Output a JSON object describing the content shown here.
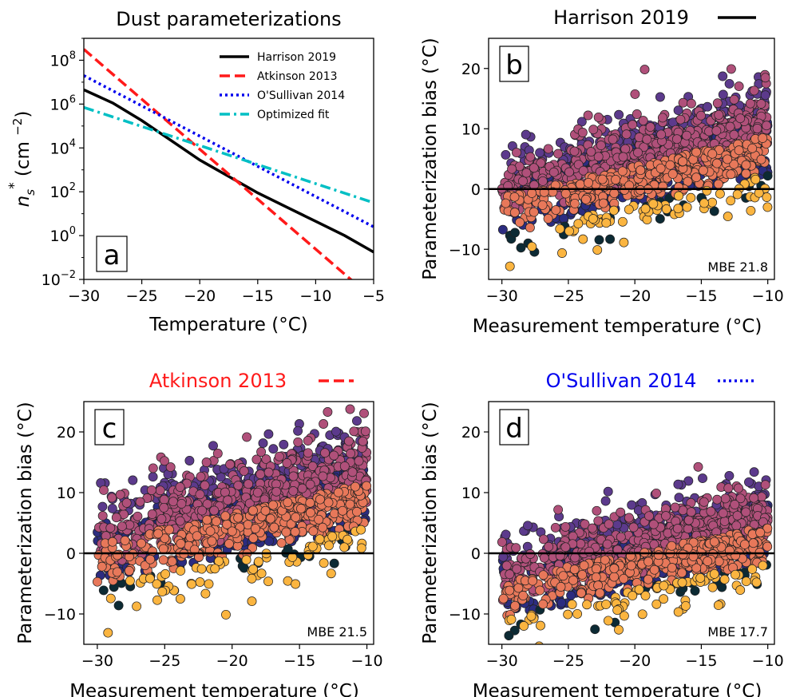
{
  "chart_data": [
    {
      "panel": "a",
      "type": "line",
      "title": "Dust parameterizations",
      "xlabel": "Temperature (°C)",
      "ylabel": {
        "base": "n",
        "sub": "s",
        "sup": "*",
        "unit_prefix": "(cm ",
        "unit_exp": "−2",
        "unit_suffix": ")"
      },
      "xlim": [
        -30,
        -5
      ],
      "ylim_log10": [
        -2,
        9
      ],
      "y_scale": "log",
      "xticks": [
        "−30",
        "−25",
        "−20",
        "−15",
        "−10",
        "−5"
      ],
      "yticks": [
        {
          "base": "10",
          "exp": "−2"
        },
        {
          "base": "10",
          "exp": "0"
        },
        {
          "base": "10",
          "exp": "2"
        },
        {
          "base": "10",
          "exp": "4"
        },
        {
          "base": "10",
          "exp": "6"
        },
        {
          "base": "10",
          "exp": "8"
        }
      ],
      "legend_position": "top-right",
      "series": [
        {
          "name": "Harrison 2019",
          "color": "#000000",
          "style": "solid",
          "x": [
            -30,
            -27.5,
            -25,
            -22.5,
            -20,
            -17.5,
            -15,
            -12.5,
            -10,
            -7.5,
            -5
          ],
          "log10_y": [
            6.65,
            6.05,
            5.25,
            4.35,
            3.45,
            2.7,
            1.95,
            1.3,
            0.65,
            0.0,
            -0.75
          ]
        },
        {
          "name": "Atkinson 2013",
          "color": "#ff1a1a",
          "style": "dashed",
          "x": [
            -30,
            -5
          ],
          "log10_y": [
            8.5,
            -2.9
          ]
        },
        {
          "name": "O'Sullivan 2014",
          "color": "#0000ee",
          "style": "dotted",
          "x": [
            -30,
            -5
          ],
          "log10_y": [
            7.3,
            0.4
          ]
        },
        {
          "name": "Optimized fit",
          "color": "#00bfc4",
          "style": "dashdot",
          "x": [
            -30,
            -5
          ],
          "log10_y": [
            5.85,
            1.5
          ]
        }
      ],
      "panel_label": "a"
    },
    {
      "panel": "b",
      "type": "scatter",
      "title": "Harrison 2019",
      "title_color": "#000000",
      "key_line": {
        "color": "#000000",
        "style": "solid"
      },
      "xlabel": "Measurement temperature (°C)",
      "ylabel": "Parameterization bias (°C)",
      "xlim": [
        -31,
        -9.5
      ],
      "ylim": [
        -15,
        25
      ],
      "xticks": [
        "−30",
        "−25",
        "−20",
        "−15",
        "−10"
      ],
      "yticks": [
        "−10",
        "0",
        "10",
        "20"
      ],
      "reference_line_y": 0,
      "mbe_label": "MBE 21.8",
      "panel_label": "b",
      "bias_model": {
        "slope": 0.5,
        "intercept": 12.3,
        "spread": 4.0
      }
    },
    {
      "panel": "c",
      "type": "scatter",
      "title": "Atkinson 2013",
      "title_color": "#ff1a1a",
      "key_line": {
        "color": "#ff1a1a",
        "style": "dashed"
      },
      "xlabel": "Measurement temperature (°C)",
      "ylabel": "Parameterization bias (°C)",
      "xlim": [
        -31,
        -9.5
      ],
      "ylim": [
        -15,
        25
      ],
      "xticks": [
        "−30",
        "−25",
        "−20",
        "−15",
        "−10"
      ],
      "yticks": [
        "−10",
        "0",
        "10",
        "20"
      ],
      "reference_line_y": 0,
      "mbe_label": "MBE 21.5",
      "panel_label": "c",
      "bias_model": {
        "slope": 0.5,
        "intercept": 15.0,
        "spread": 4.5
      }
    },
    {
      "panel": "d",
      "type": "scatter",
      "title": "O'Sullivan 2014",
      "title_color": "#0000ee",
      "key_line": {
        "color": "#0000ee",
        "style": "dotted"
      },
      "xlabel": "Measurement temperature (°C)",
      "ylabel": "Parameterization bias (°C)",
      "xlim": [
        -31,
        -9.5
      ],
      "ylim": [
        -15,
        25
      ],
      "xticks": [
        "−30",
        "−25",
        "−20",
        "−15",
        "−10"
      ],
      "yticks": [
        "−10",
        "0",
        "10",
        "20"
      ],
      "reference_line_y": 0,
      "mbe_label": "MBE 17.7",
      "panel_label": "d",
      "bias_model": {
        "slope": 0.45,
        "intercept": 7.5,
        "spread": 3.8
      }
    }
  ],
  "marker_colors": [
    "#0c2a34",
    "#2c2c80",
    "#5c3a8c",
    "#b0507a",
    "#e8785a",
    "#fbb540"
  ]
}
